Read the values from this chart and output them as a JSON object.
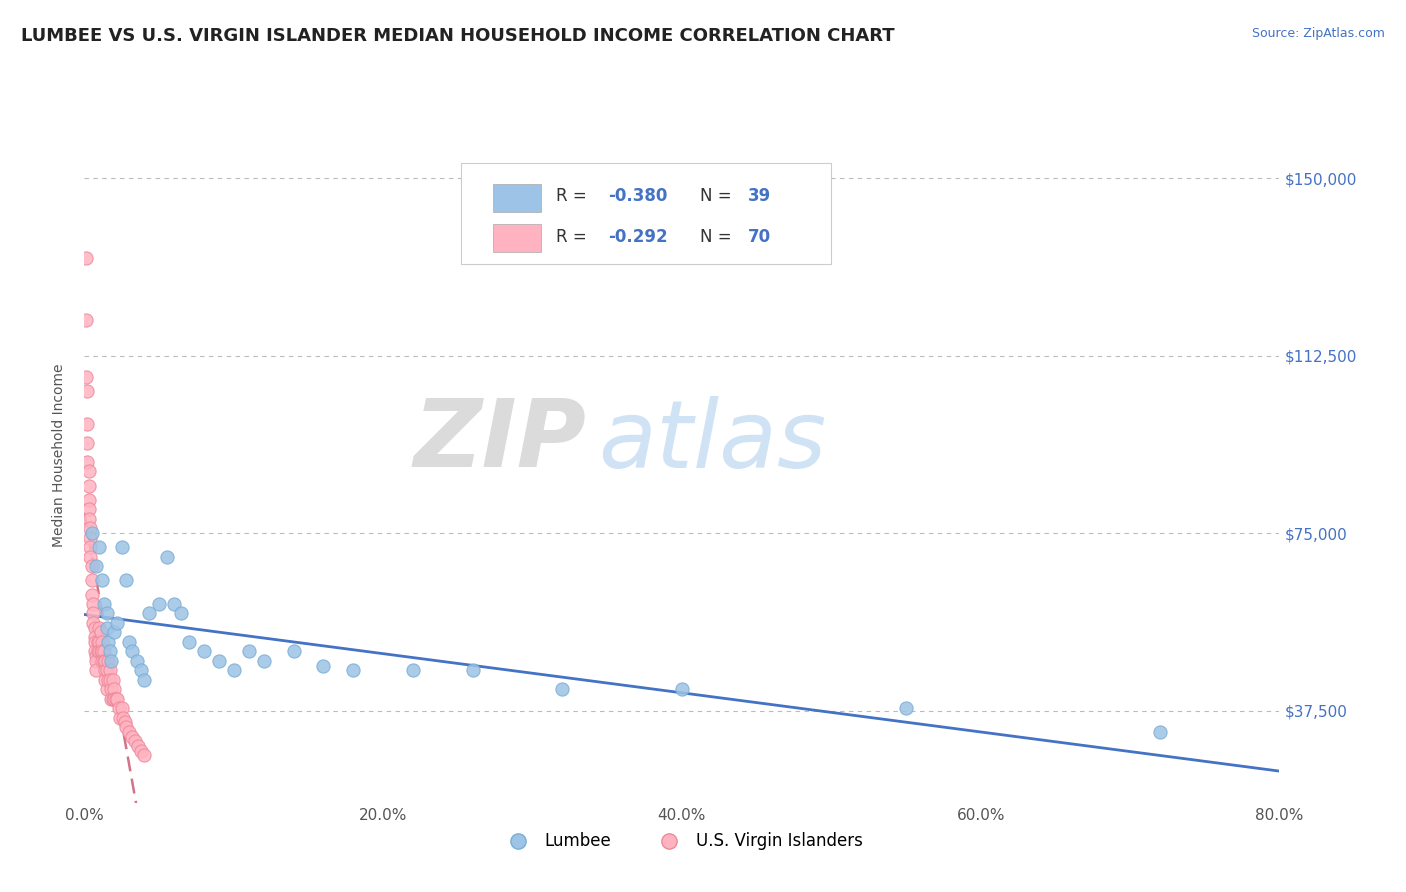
{
  "title": "LUMBEE VS U.S. VIRGIN ISLANDER MEDIAN HOUSEHOLD INCOME CORRELATION CHART",
  "source_text": "Source: ZipAtlas.com",
  "ylabel": "Median Household Income",
  "watermark_zip": "ZIP",
  "watermark_atlas": "atlas",
  "xlim": [
    0.0,
    0.8
  ],
  "ylim": [
    18000,
    165000
  ],
  "xticks": [
    0.0,
    0.2,
    0.4,
    0.6,
    0.8
  ],
  "xtick_labels": [
    "0.0%",
    "20.0%",
    "40.0%",
    "60.0%",
    "80.0%"
  ],
  "ytick_values": [
    37500,
    75000,
    112500,
    150000
  ],
  "ytick_labels": [
    "$37,500",
    "$75,000",
    "$112,500",
    "$150,000"
  ],
  "ytick_color": "#4472c4",
  "grid_color": "#bbbbbb",
  "background_color": "#ffffff",
  "lumbee_color": "#9dc3e6",
  "virgin_color": "#ffb3c1",
  "lumbee_edge_color": "#7badd4",
  "virgin_edge_color": "#ee8899",
  "lumbee_trend_color": "#4472c4",
  "virgin_trend_color": "#d4728a",
  "legend_label1": "Lumbee",
  "legend_label2": "U.S. Virgin Islanders",
  "title_fontsize": 13,
  "axis_label_fontsize": 10,
  "tick_fontsize": 11,
  "lumbee_x": [
    0.005,
    0.008,
    0.01,
    0.012,
    0.013,
    0.015,
    0.015,
    0.016,
    0.017,
    0.018,
    0.02,
    0.022,
    0.025,
    0.028,
    0.03,
    0.032,
    0.035,
    0.038,
    0.04,
    0.043,
    0.05,
    0.055,
    0.06,
    0.065,
    0.07,
    0.08,
    0.09,
    0.1,
    0.11,
    0.12,
    0.14,
    0.16,
    0.18,
    0.22,
    0.26,
    0.32,
    0.4,
    0.55,
    0.72
  ],
  "lumbee_y": [
    75000,
    68000,
    72000,
    65000,
    60000,
    58000,
    55000,
    52000,
    50000,
    48000,
    54000,
    56000,
    72000,
    65000,
    52000,
    50000,
    48000,
    46000,
    44000,
    58000,
    60000,
    70000,
    60000,
    58000,
    52000,
    50000,
    48000,
    46000,
    50000,
    48000,
    50000,
    47000,
    46000,
    46000,
    46000,
    42000,
    42000,
    38000,
    33000
  ],
  "virgin_x": [
    0.001,
    0.001,
    0.001,
    0.002,
    0.002,
    0.002,
    0.002,
    0.003,
    0.003,
    0.003,
    0.003,
    0.003,
    0.004,
    0.004,
    0.004,
    0.004,
    0.005,
    0.005,
    0.005,
    0.006,
    0.006,
    0.006,
    0.007,
    0.007,
    0.007,
    0.007,
    0.008,
    0.008,
    0.008,
    0.009,
    0.009,
    0.01,
    0.01,
    0.01,
    0.011,
    0.011,
    0.012,
    0.012,
    0.012,
    0.013,
    0.013,
    0.014,
    0.014,
    0.014,
    0.015,
    0.015,
    0.016,
    0.016,
    0.017,
    0.017,
    0.018,
    0.018,
    0.019,
    0.019,
    0.02,
    0.02,
    0.021,
    0.022,
    0.023,
    0.024,
    0.025,
    0.026,
    0.027,
    0.028,
    0.03,
    0.032,
    0.034,
    0.036,
    0.038,
    0.04
  ],
  "virgin_y": [
    133000,
    120000,
    108000,
    105000,
    98000,
    94000,
    90000,
    88000,
    85000,
    82000,
    80000,
    78000,
    76000,
    74000,
    72000,
    70000,
    68000,
    65000,
    62000,
    60000,
    58000,
    56000,
    55000,
    53000,
    52000,
    50000,
    49000,
    48000,
    46000,
    52000,
    50000,
    55000,
    52000,
    50000,
    54000,
    50000,
    52000,
    50000,
    48000,
    50000,
    48000,
    48000,
    46000,
    44000,
    46000,
    42000,
    48000,
    44000,
    46000,
    44000,
    42000,
    40000,
    44000,
    40000,
    42000,
    40000,
    40000,
    40000,
    38000,
    36000,
    38000,
    36000,
    35000,
    34000,
    33000,
    32000,
    31000,
    30000,
    29000,
    28000
  ]
}
